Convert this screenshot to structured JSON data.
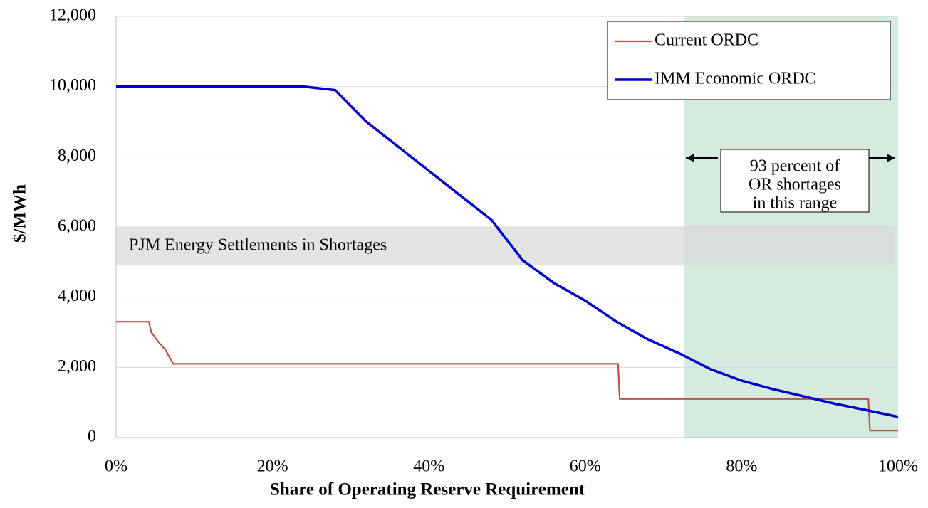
{
  "chart_data": {
    "type": "line",
    "x_label": "Share of Operating Reserve Requirement",
    "y_label": "$/MWh",
    "xlim": [
      0,
      100
    ],
    "ylim": [
      0,
      12000
    ],
    "xticks": [
      {
        "value": 0,
        "label": "0%"
      },
      {
        "value": 20,
        "label": "20%"
      },
      {
        "value": 40,
        "label": "40%"
      },
      {
        "value": 60,
        "label": "60%"
      },
      {
        "value": 80,
        "label": "80%"
      },
      {
        "value": 100,
        "label": "100%"
      }
    ],
    "yticks": [
      0,
      {
        "value": 2000,
        "label": "2,000"
      },
      {
        "value": 4000,
        "label": "4,000"
      },
      {
        "value": 6000,
        "label": "6,000"
      },
      {
        "value": 8000,
        "label": "8,000"
      },
      {
        "value": 10000,
        "label": "10,000"
      },
      {
        "value": 12000,
        "label": "12,000"
      }
    ],
    "grid": true,
    "legend": "top-right",
    "highlight": {
      "xlim": [
        72.6,
        100
      ],
      "color": "#d5ebe0"
    },
    "band": {
      "label": "PJM Energy Settlements in Shortages",
      "xlim": [
        0,
        99.5
      ],
      "ylim": [
        4900,
        6000
      ],
      "color": "#d9d9d9"
    },
    "annotation": {
      "lines": [
        "93 percent of",
        "OR shortages",
        "in this range"
      ]
    },
    "series": [
      {
        "name": "Current ORDC",
        "color": "#c0504d",
        "x": [
          0,
          4.2,
          4.5,
          5.5,
          6.3,
          7.3,
          64.2,
          64.4,
          96.2,
          96.4,
          100
        ],
        "values": [
          3300,
          3300,
          3000,
          2700,
          2500,
          2100,
          2100,
          1100,
          1100,
          200,
          200
        ]
      },
      {
        "name": "IMM Economic ORDC",
        "color": "#0000cc",
        "x": [
          0,
          24,
          28,
          32,
          36,
          40,
          44,
          48,
          52,
          56,
          60,
          64,
          68,
          72,
          76,
          80,
          84,
          88,
          92,
          96,
          100
        ],
        "values": [
          10000,
          10000,
          9900,
          9000,
          8300,
          7600,
          6900,
          6200,
          5050,
          4400,
          3900,
          3300,
          2800,
          2400,
          1950,
          1620,
          1380,
          1170,
          960,
          780,
          590
        ]
      }
    ]
  }
}
